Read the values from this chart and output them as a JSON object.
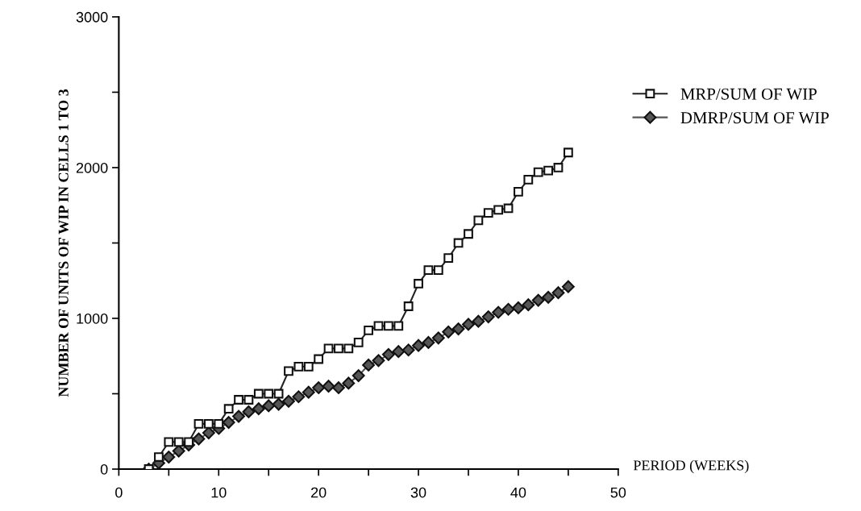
{
  "chart_data": {
    "type": "line",
    "xlabel": "PERIOD (WEEKS)",
    "ylabel": "NUMBER OF UNITS OF WIP IN CELLS 1 TO 3",
    "x": [
      3,
      4,
      5,
      6,
      7,
      8,
      9,
      10,
      11,
      12,
      13,
      14,
      15,
      16,
      17,
      18,
      19,
      20,
      21,
      22,
      23,
      24,
      25,
      26,
      27,
      28,
      29,
      30,
      31,
      32,
      33,
      34,
      35,
      36,
      37,
      38,
      39,
      40,
      41,
      42,
      43,
      44,
      45
    ],
    "series": [
      {
        "name": "MRP/SUM OF WIP",
        "color": "#222222",
        "marker": "square",
        "values": [
          0,
          80,
          180,
          180,
          180,
          300,
          300,
          300,
          400,
          460,
          460,
          500,
          500,
          500,
          650,
          680,
          680,
          730,
          800,
          800,
          800,
          840,
          920,
          950,
          950,
          950,
          1080,
          1230,
          1320,
          1320,
          1400,
          1500,
          1560,
          1650,
          1700,
          1720,
          1730,
          1840,
          1920,
          1970,
          1980,
          2000,
          2100
        ]
      },
      {
        "name": "DMRP/SUM OF WIP",
        "color": "#555555",
        "marker": "diamond",
        "values": [
          0,
          40,
          80,
          120,
          160,
          200,
          240,
          270,
          310,
          350,
          380,
          400,
          420,
          430,
          450,
          480,
          510,
          540,
          550,
          540,
          570,
          620,
          690,
          720,
          760,
          780,
          790,
          820,
          840,
          870,
          910,
          930,
          960,
          980,
          1010,
          1040,
          1060,
          1070,
          1090,
          1120,
          1140,
          1170,
          1210
        ]
      }
    ],
    "xlim": [
      0,
      50
    ],
    "xticks": [
      0,
      {
        "value": 5,
        "label": null
      },
      10,
      {
        "value": 15,
        "label": null
      },
      20,
      {
        "value": 25,
        "label": null
      },
      30,
      {
        "value": 35,
        "label": null
      },
      40,
      {
        "value": 45,
        "label": null
      },
      50
    ],
    "ylim": [
      0,
      3000
    ],
    "yticks": [
      0,
      {
        "value": 500,
        "label": null
      },
      1000,
      {
        "value": 1500,
        "label": null
      },
      2000,
      {
        "value": 2500,
        "label": null
      },
      3000
    ],
    "grid": false,
    "legend": "right",
    "line_style": "solid"
  }
}
